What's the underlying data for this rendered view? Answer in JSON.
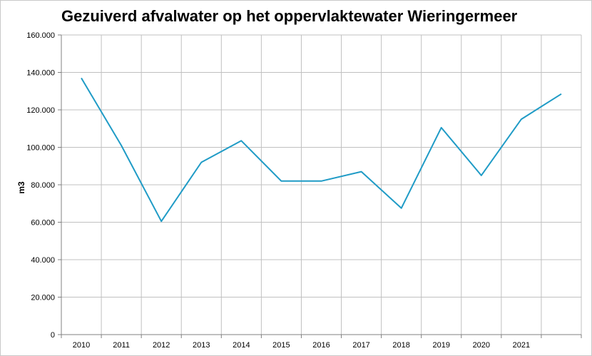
{
  "chart_data": {
    "type": "line",
    "title": "Gezuiverd afvalwater op het oppervlaktewater Wieringermeer",
    "xlabel": "",
    "ylabel": "m3",
    "categories": [
      "2010",
      "2011",
      "2012",
      "2013",
      "2014",
      "2015",
      "2016",
      "2017",
      "2018",
      "2019",
      "2020",
      "2021",
      ""
    ],
    "series": [
      {
        "values": [
          137000,
          101000,
          60500,
          92000,
          103500,
          82000,
          82000,
          87000,
          67500,
          110500,
          85000,
          115000,
          128500
        ]
      }
    ],
    "ylim": [
      0,
      160000
    ],
    "yticks": [
      0,
      20000,
      40000,
      60000,
      80000,
      100000,
      120000,
      140000,
      160000
    ],
    "ytick_labels": [
      "0",
      "20.000",
      "40.000",
      "60.000",
      "80.000",
      "100.000",
      "120.000",
      "140.000",
      "160.000"
    ],
    "grid": true,
    "legend": "none",
    "colors": {
      "line": "#1f9bc6",
      "grid": "#c0c0c0",
      "axis": "#808080"
    }
  }
}
